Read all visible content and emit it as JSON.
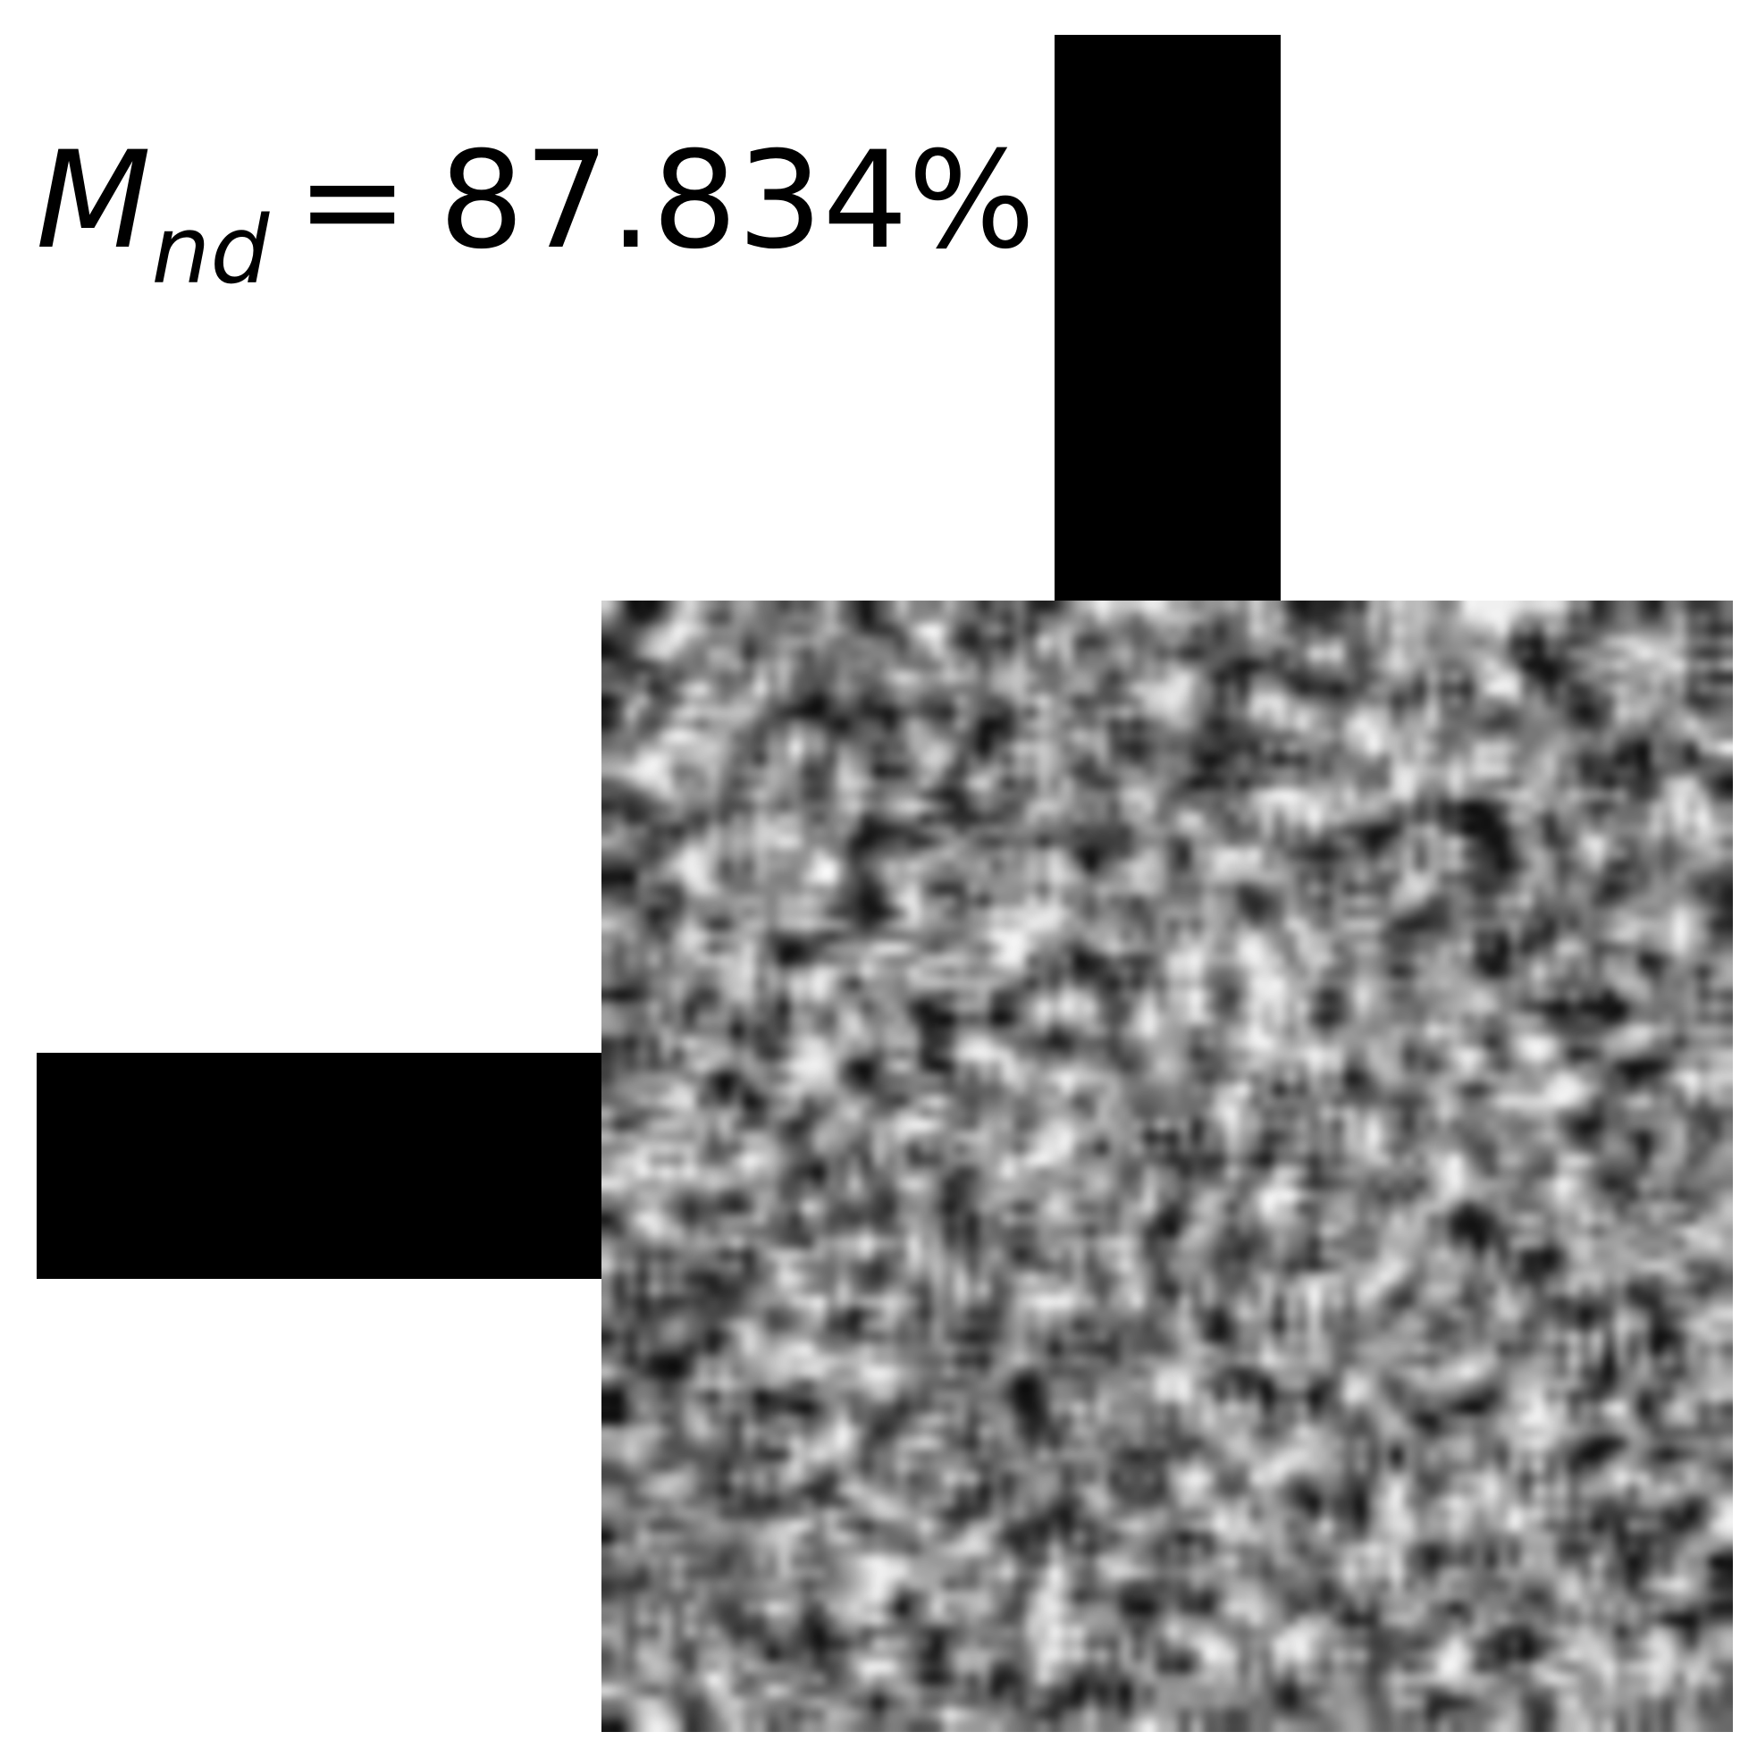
{
  "figure": {
    "metric": {
      "symbol": "M",
      "subscript": "nd",
      "equals": "=",
      "value": "87.834%"
    },
    "texture": {
      "grid_cells": 96,
      "seed": 1337
    },
    "colors": {
      "background": "#ffffff",
      "bars": "#000000"
    }
  }
}
